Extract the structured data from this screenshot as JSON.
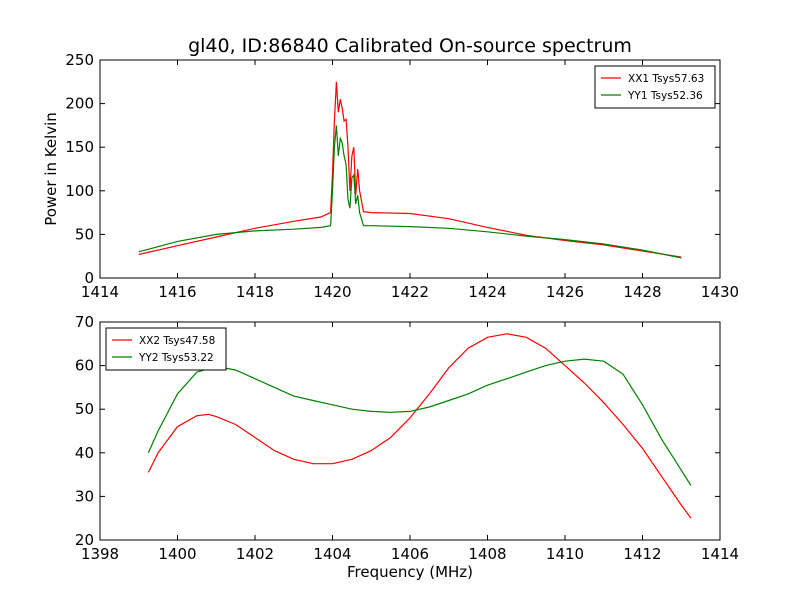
{
  "figure_title": "gl40, ID:86840 Calibrated On-source spectrum",
  "chart_data": [
    {
      "type": "line",
      "title": "gl40, ID:86840 Calibrated On-source spectrum",
      "xlabel": "",
      "ylabel": "Power in Kelvin",
      "xlim": [
        1414,
        1430
      ],
      "ylim": [
        0,
        250
      ],
      "xticks": [
        "1414",
        "1416",
        "1418",
        "1420",
        "1422",
        "1424",
        "1426",
        "1428",
        "1430"
      ],
      "yticks": [
        "0",
        "50",
        "100",
        "150",
        "200",
        "250"
      ],
      "grid": false,
      "legend_position": "top-right",
      "series": [
        {
          "name": "XX1 Tsys57.63",
          "color": "#ff0000",
          "x": [
            1415.0,
            1416.0,
            1417.0,
            1418.0,
            1419.0,
            1419.7,
            1419.95,
            1420.0,
            1420.05,
            1420.1,
            1420.15,
            1420.2,
            1420.25,
            1420.3,
            1420.35,
            1420.4,
            1420.45,
            1420.5,
            1420.55,
            1420.6,
            1420.65,
            1420.7,
            1420.8,
            1421.0,
            1422.0,
            1423.0,
            1424.0,
            1425.0,
            1426.0,
            1427.0,
            1428.0,
            1429.0
          ],
          "y": [
            27,
            37,
            47,
            57,
            65,
            70,
            75,
            120,
            180,
            225,
            190,
            205,
            195,
            180,
            182,
            150,
            100,
            140,
            150,
            95,
            125,
            100,
            76,
            75,
            74,
            68,
            58,
            49,
            43,
            38,
            31,
            24
          ]
        },
        {
          "name": "YY1 Tsys52.36",
          "color": "#008000",
          "x": [
            1415.0,
            1416.0,
            1417.0,
            1418.0,
            1419.0,
            1419.7,
            1419.95,
            1420.0,
            1420.05,
            1420.1,
            1420.15,
            1420.2,
            1420.25,
            1420.3,
            1420.35,
            1420.4,
            1420.45,
            1420.5,
            1420.55,
            1420.6,
            1420.65,
            1420.7,
            1420.8,
            1421.0,
            1422.0,
            1423.0,
            1424.0,
            1425.0,
            1426.0,
            1427.0,
            1428.0,
            1429.0
          ],
          "y": [
            30,
            42,
            50,
            54,
            56,
            58,
            60,
            100,
            150,
            175,
            140,
            160,
            155,
            140,
            130,
            90,
            80,
            115,
            118,
            85,
            95,
            75,
            60,
            60,
            59,
            57,
            53,
            48,
            44,
            39,
            32,
            23
          ]
        }
      ]
    },
    {
      "type": "line",
      "title": "",
      "xlabel": "Frequency (MHz)",
      "ylabel": "",
      "xlim": [
        1398,
        1414
      ],
      "ylim": [
        20,
        70
      ],
      "xticks": [
        "1398",
        "1400",
        "1402",
        "1404",
        "1406",
        "1408",
        "1410",
        "1412",
        "1414"
      ],
      "yticks": [
        "20",
        "30",
        "40",
        "50",
        "60",
        "70"
      ],
      "grid": false,
      "legend_position": "top-left",
      "series": [
        {
          "name": "XX2 Tsys47.58",
          "color": "#ff0000",
          "x": [
            1399.25,
            1399.5,
            1400.0,
            1400.5,
            1400.8,
            1401.0,
            1401.5,
            1402.0,
            1402.5,
            1403.0,
            1403.5,
            1404.0,
            1404.5,
            1405.0,
            1405.5,
            1406.0,
            1406.5,
            1407.0,
            1407.5,
            1408.0,
            1408.5,
            1409.0,
            1409.5,
            1410.0,
            1410.5,
            1411.0,
            1411.5,
            1412.0,
            1412.5,
            1413.0,
            1413.25
          ],
          "y": [
            35.5,
            40,
            46,
            48.5,
            48.8,
            48.3,
            46.5,
            43.5,
            40.5,
            38.5,
            37.5,
            37.5,
            38.5,
            40.5,
            43.5,
            48,
            53.5,
            59.5,
            64,
            66.5,
            67.3,
            66.5,
            64,
            60,
            56,
            51.5,
            46.5,
            41,
            34.5,
            28,
            25
          ]
        },
        {
          "name": "YY2 Tsys53.22",
          "color": "#008000",
          "x": [
            1399.25,
            1399.5,
            1400.0,
            1400.5,
            1401.0,
            1401.5,
            1402.0,
            1402.5,
            1403.0,
            1403.5,
            1404.0,
            1404.5,
            1405.0,
            1405.5,
            1406.0,
            1406.5,
            1407.0,
            1407.5,
            1408.0,
            1408.5,
            1409.0,
            1409.5,
            1410.0,
            1410.5,
            1411.0,
            1411.5,
            1412.0,
            1412.5,
            1413.0,
            1413.25
          ],
          "y": [
            40,
            45,
            53.5,
            58.5,
            59.8,
            59,
            57,
            55,
            53,
            52,
            51,
            50,
            49.5,
            49.3,
            49.5,
            50.5,
            52,
            53.5,
            55.5,
            57,
            58.5,
            60,
            61,
            61.5,
            61,
            58,
            51,
            43,
            36,
            32.5
          ]
        }
      ]
    }
  ]
}
